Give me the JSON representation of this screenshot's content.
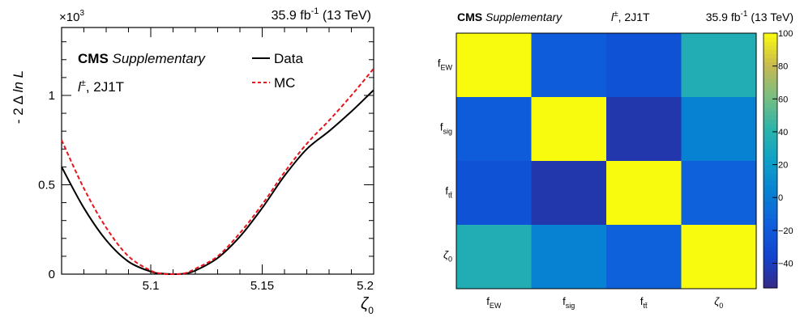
{
  "chart_data": [
    {
      "type": "line",
      "header": {
        "lumi_left": "35.9 fb",
        "lumi_sup": "-1",
        "lumi_right": " (13 TeV)"
      },
      "tag": {
        "cms": "CMS",
        "supp": "Supplementary"
      },
      "channel": {
        "lep": "l",
        "lep_sup": "±",
        "rest": ", 2J1T"
      },
      "ylabel": {
        "prefix": "- 2 Δ ",
        "ln": "ln L"
      },
      "yexp": {
        "base": "×10",
        "sup": "3"
      },
      "xlabel": {
        "sym": "ζ",
        "sub": "0"
      },
      "xlim": [
        5.06,
        5.2
      ],
      "ylim": [
        0,
        1.38
      ],
      "x_ticks": [
        {
          "v": 5.1,
          "label": "5.1"
        },
        {
          "v": 5.15,
          "label": "5.15"
        },
        {
          "v": 5.2,
          "label": "5.2"
        }
      ],
      "y_ticks": [
        {
          "v": 0,
          "label": "0"
        },
        {
          "v": 0.5,
          "label": "0.5"
        },
        {
          "v": 1,
          "label": "1"
        }
      ],
      "series": [
        {
          "name": "Data",
          "color": "#000000",
          "dash": "",
          "points": [
            [
              5.06,
              0.6
            ],
            [
              5.07,
              0.37
            ],
            [
              5.08,
              0.19
            ],
            [
              5.09,
              0.07
            ],
            [
              5.1,
              0.014
            ],
            [
              5.105,
              0.003
            ],
            [
              5.11,
              0.0
            ],
            [
              5.115,
              0.003
            ],
            [
              5.12,
              0.02
            ],
            [
              5.13,
              0.09
            ],
            [
              5.14,
              0.21
            ],
            [
              5.15,
              0.37
            ],
            [
              5.16,
              0.55
            ],
            [
              5.17,
              0.7
            ],
            [
              5.18,
              0.8
            ],
            [
              5.19,
              0.91
            ],
            [
              5.2,
              1.03
            ]
          ]
        },
        {
          "name": "MC",
          "color": "#e8141c",
          "dash": "5,3",
          "points": [
            [
              5.06,
              0.75
            ],
            [
              5.07,
              0.48
            ],
            [
              5.08,
              0.26
            ],
            [
              5.09,
              0.1
            ],
            [
              5.1,
              0.02
            ],
            [
              5.105,
              0.003
            ],
            [
              5.11,
              0.0
            ],
            [
              5.115,
              0.004
            ],
            [
              5.12,
              0.03
            ],
            [
              5.13,
              0.1
            ],
            [
              5.14,
              0.23
            ],
            [
              5.15,
              0.39
            ],
            [
              5.16,
              0.57
            ],
            [
              5.17,
              0.73
            ],
            [
              5.18,
              0.86
            ],
            [
              5.19,
              1.0
            ],
            [
              5.2,
              1.15
            ]
          ]
        }
      ]
    },
    {
      "type": "heatmap",
      "header": {
        "lumi_left": "35.9 fb",
        "lumi_sup": "-1",
        "lumi_right": " (13 TeV)"
      },
      "tag": {
        "cms": "CMS",
        "supp": "Supplementary"
      },
      "channel": {
        "lep": "l",
        "lep_sup": "±",
        "rest": ", 2J1T"
      },
      "rows": [
        {
          "main": "f",
          "sub": "EW",
          "italic": false
        },
        {
          "main": "f",
          "sub": "sig",
          "italic": false
        },
        {
          "main": "f",
          "sub": "tt̄",
          "italic": false
        },
        {
          "main": "ζ",
          "sub": "0",
          "italic": true
        }
      ],
      "cols": [
        {
          "main": "f",
          "sub": "EW",
          "italic": false
        },
        {
          "main": "f",
          "sub": "sig",
          "italic": false
        },
        {
          "main": "f",
          "sub": "tt̄",
          "italic": false
        },
        {
          "main": "ζ",
          "sub": "0",
          "italic": true
        }
      ],
      "z": [
        [
          100,
          -18,
          -25,
          35
        ],
        [
          -18,
          100,
          -45,
          4
        ],
        [
          -25,
          -45,
          100,
          -15
        ],
        [
          35,
          4,
          -15,
          100
        ]
      ],
      "zlim": [
        -55,
        100
      ],
      "color_ticks": [
        {
          "v": 100,
          "label": "100"
        },
        {
          "v": 80,
          "label": "80"
        },
        {
          "v": 60,
          "label": "60"
        },
        {
          "v": 40,
          "label": "40"
        },
        {
          "v": 20,
          "label": "20"
        },
        {
          "v": 0,
          "label": "0"
        },
        {
          "v": -20,
          "label": "−20"
        },
        {
          "v": -40,
          "label": "−40"
        }
      ]
    }
  ]
}
